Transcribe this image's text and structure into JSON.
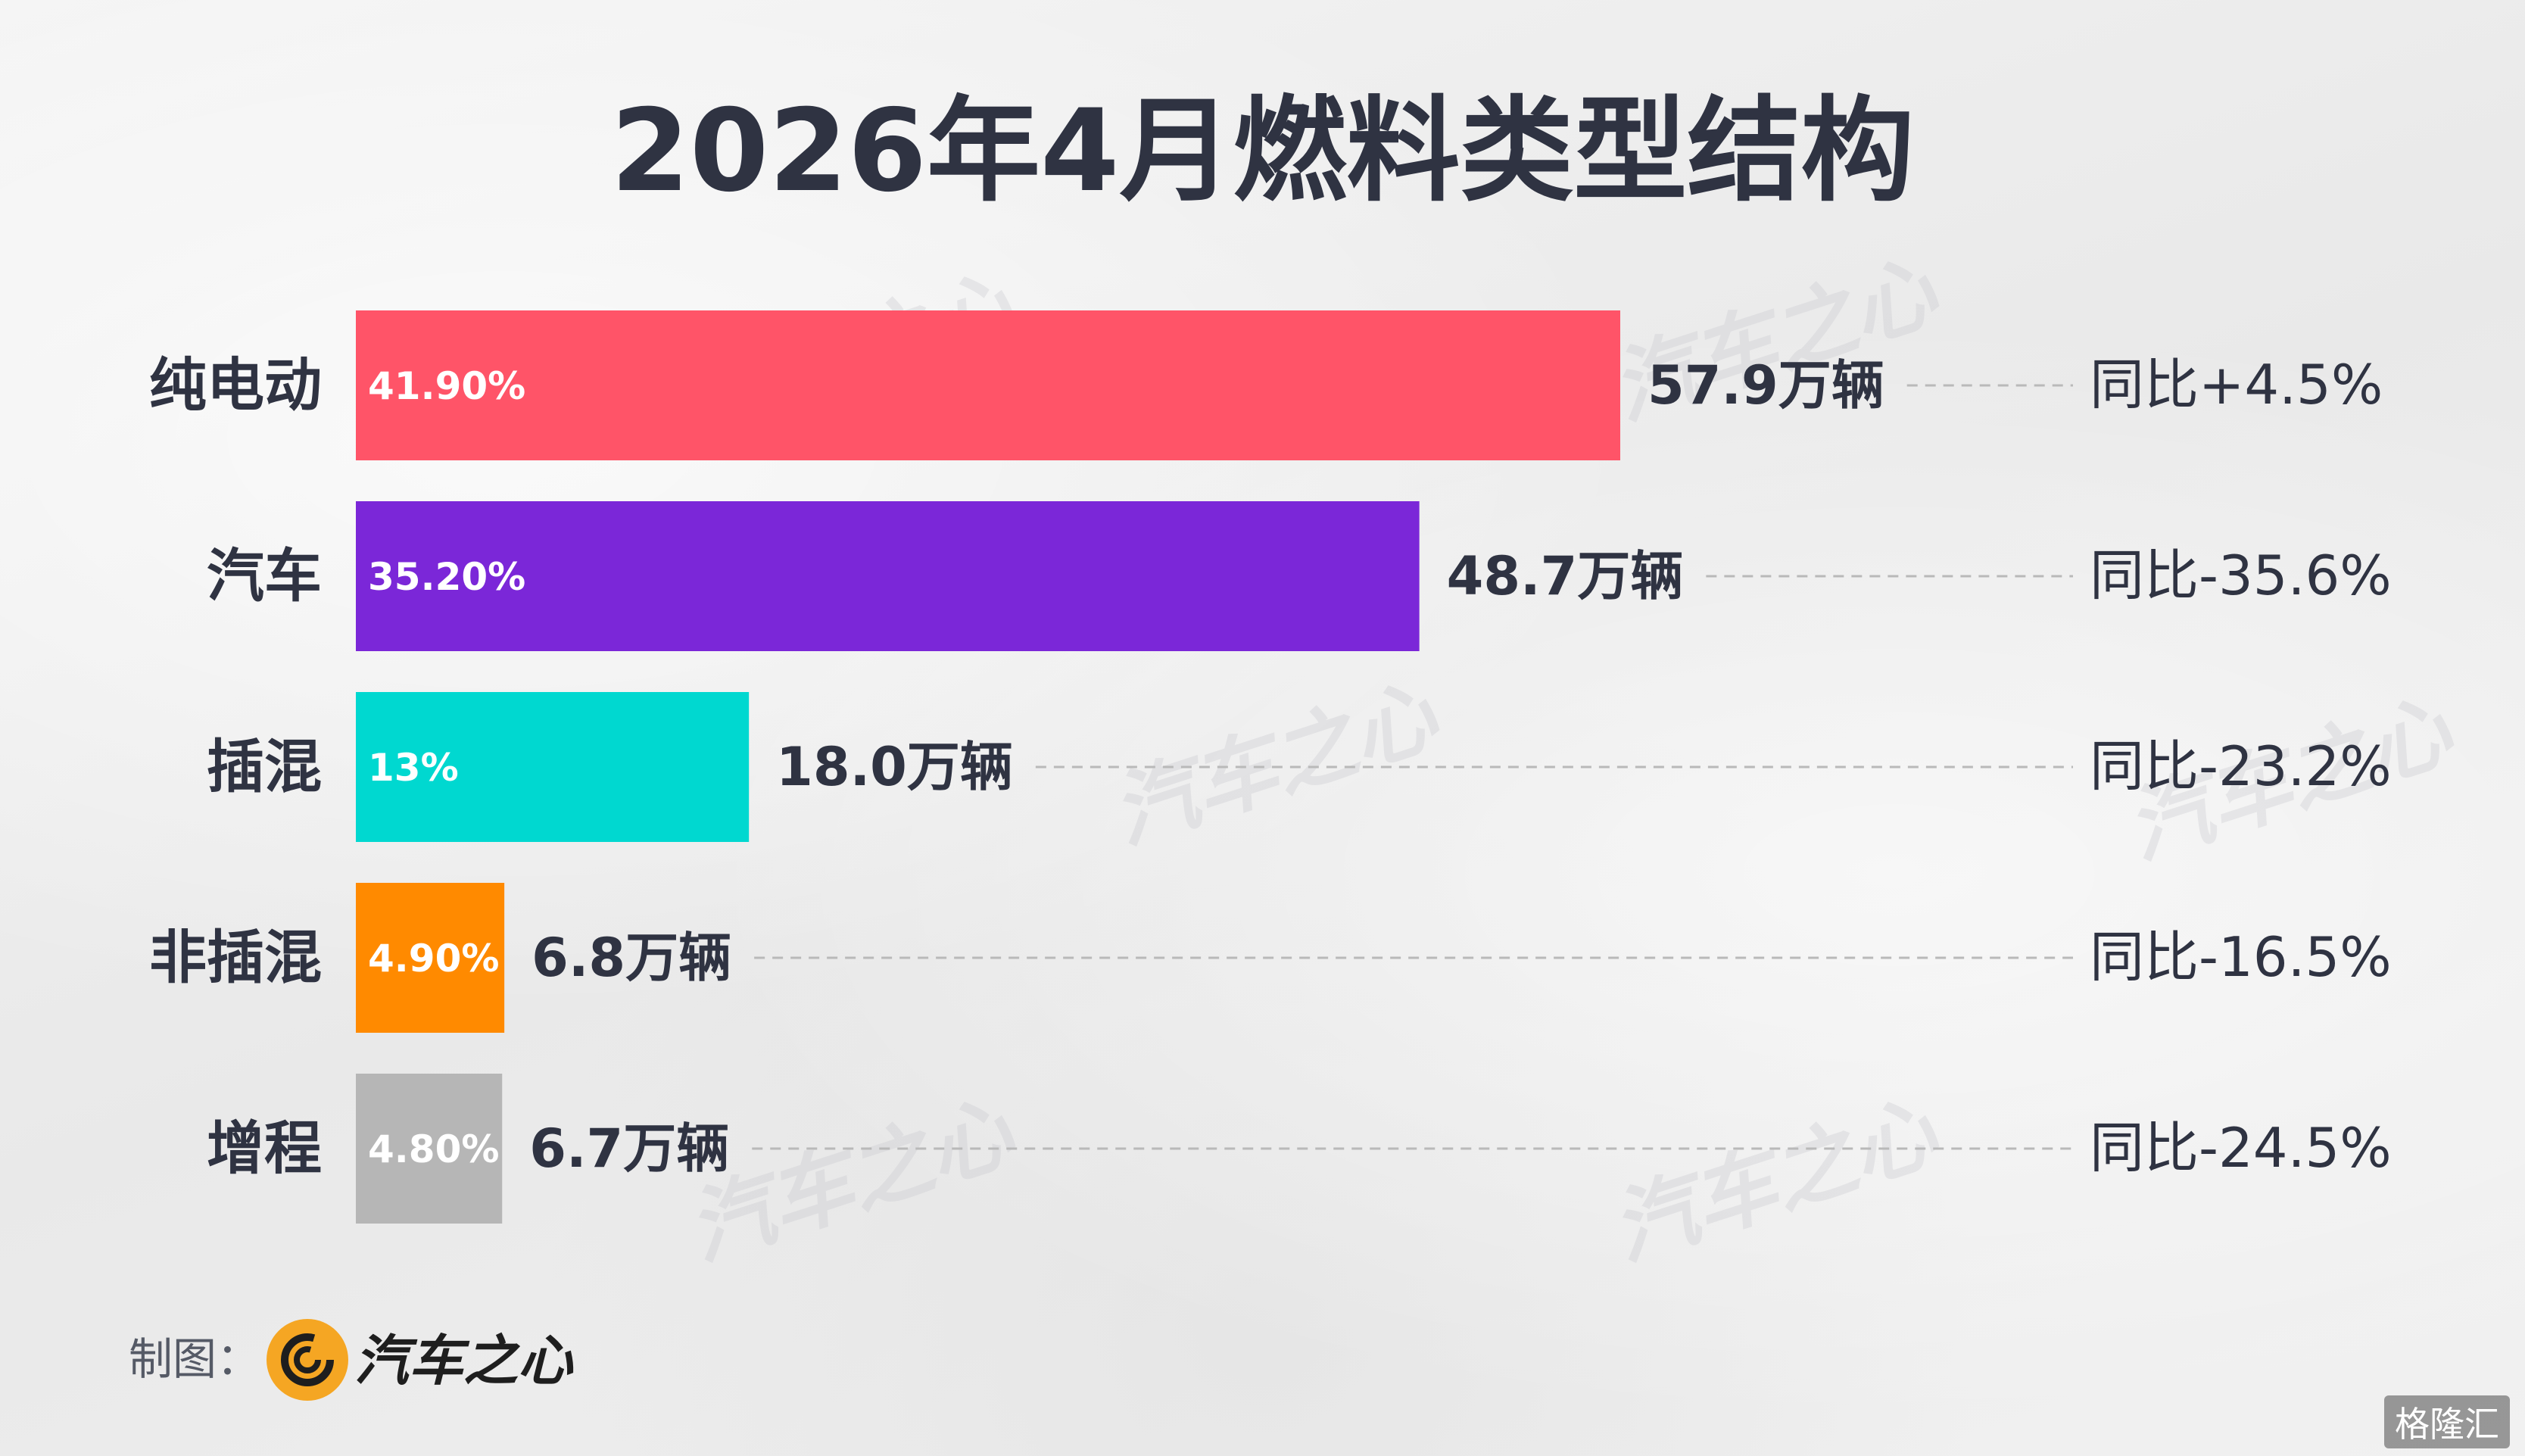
{
  "title": "2026年4月燃料类型结构",
  "chart_data": {
    "type": "bar",
    "orientation": "horizontal",
    "title": "2026年4月燃料类型结构",
    "categories": [
      "纯电动",
      "汽车",
      "插混",
      "非插混",
      "增程"
    ],
    "share_labels": [
      "41.90%",
      "35.20%",
      "13%",
      "4.90%",
      "4.80%"
    ],
    "values": [
      57.9,
      48.7,
      18.0,
      6.8,
      6.7
    ],
    "value_labels": [
      "57.9万辆",
      "48.7万辆",
      "18.0万辆",
      "6.8万辆",
      "6.7万辆"
    ],
    "yoy_labels": [
      "同比+4.5%",
      "同比-35.6%",
      "同比-23.2%",
      "同比-16.5%",
      "同比-24.5%"
    ],
    "colors": [
      "#ff5468",
      "#7b27d8",
      "#00d8d0",
      "#ff8a00",
      "#b6b6b6"
    ],
    "grid": false,
    "legend": "none"
  },
  "footer": {
    "label": "制图：",
    "brand": "汽车之心",
    "brand_color": "#f5a623"
  },
  "watermark": "汽车之心",
  "corner_mark": "格隆汇"
}
